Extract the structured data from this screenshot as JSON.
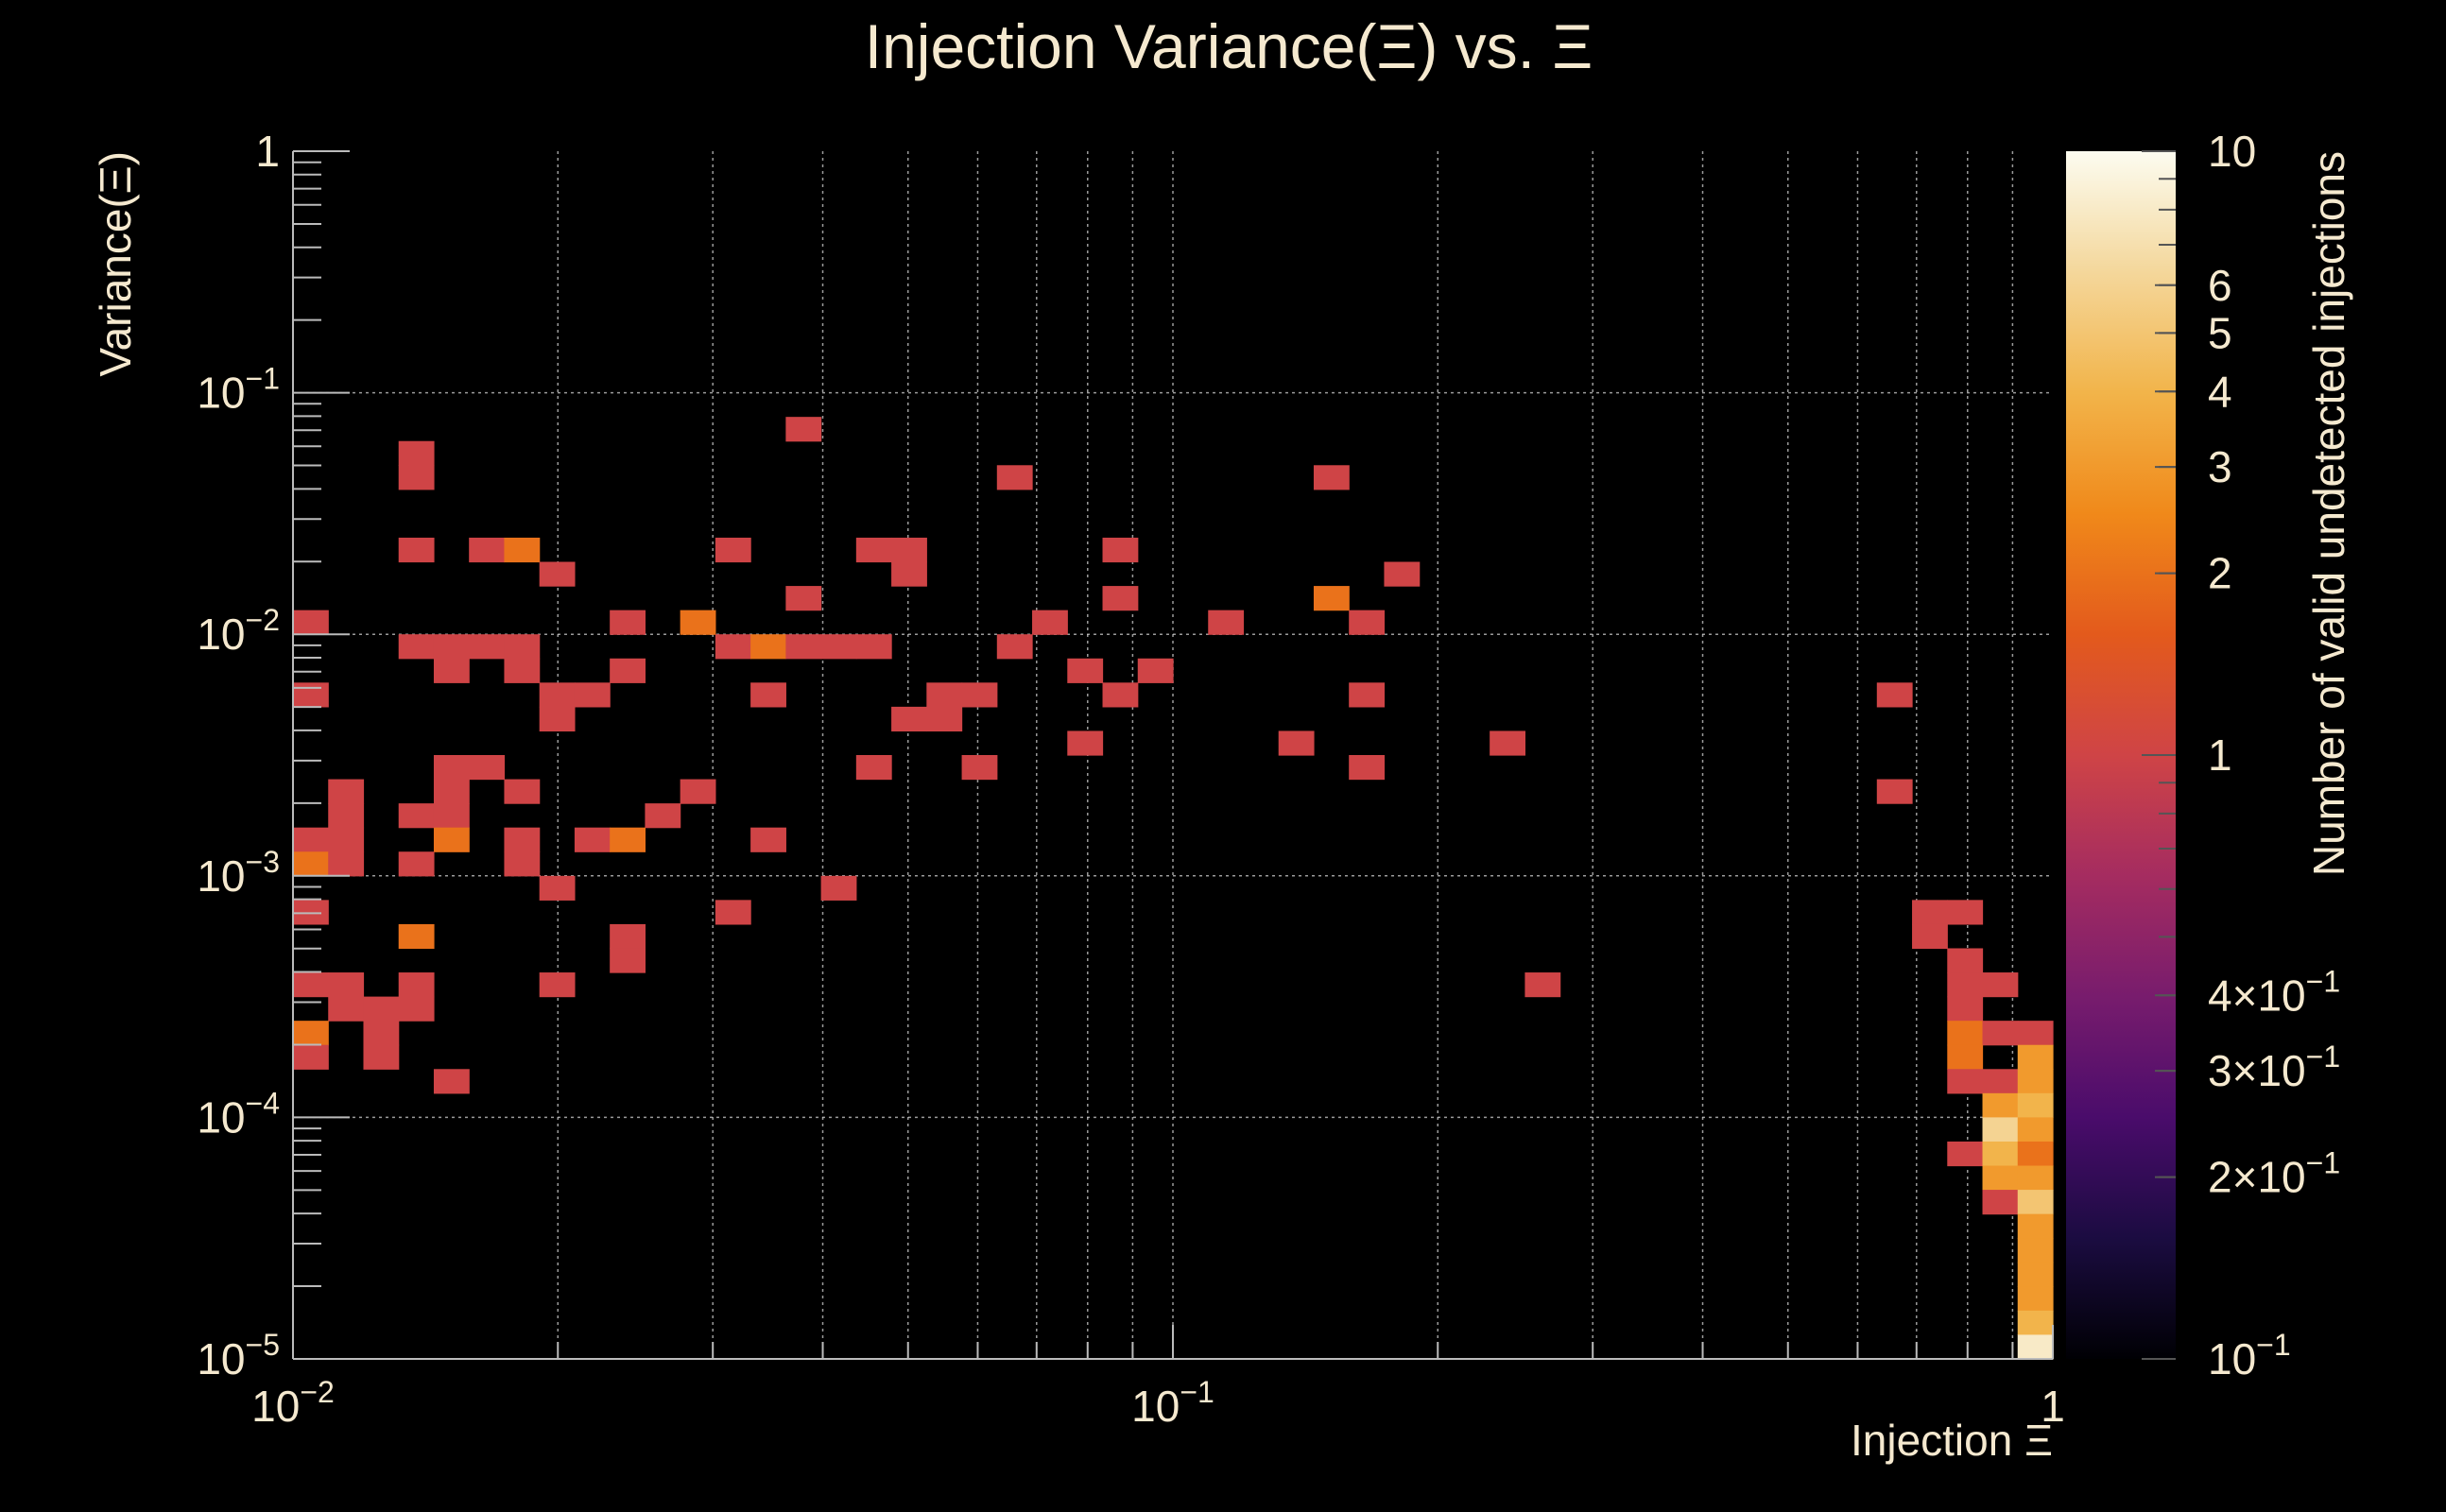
{
  "chart_data": {
    "type": "heatmap",
    "title": "Injection Variance(Ξ) vs. Ξ",
    "xlabel": "Injection Ξ",
    "ylabel": "Variance(Ξ)",
    "colorbar_label": "Number of valid undetected injections",
    "x_scale": "log",
    "y_scale": "log",
    "z_scale": "log",
    "xlim": [
      0.01,
      1
    ],
    "ylim": [
      1e-05,
      1
    ],
    "zlim": [
      0.1,
      10
    ],
    "grid": true,
    "x_ticks": [
      {
        "value": 0.01,
        "base": "10",
        "exp": "−2"
      },
      {
        "value": 0.1,
        "base": "10",
        "exp": "−1"
      },
      {
        "value": 1,
        "base": "1",
        "exp": ""
      }
    ],
    "y_ticks": [
      {
        "value": 1,
        "base": "1",
        "exp": ""
      },
      {
        "value": 0.1,
        "base": "10",
        "exp": "−1"
      },
      {
        "value": 0.01,
        "base": "10",
        "exp": "−2"
      },
      {
        "value": 0.001,
        "base": "10",
        "exp": "−3"
      },
      {
        "value": 0.0001,
        "base": "10",
        "exp": "−4"
      },
      {
        "value": 1e-05,
        "base": "10",
        "exp": "−5"
      }
    ],
    "colorbar_ticks": [
      {
        "value": 10,
        "base": "10",
        "exp": ""
      },
      {
        "value": 6,
        "base": "6",
        "exp": ""
      },
      {
        "value": 5,
        "base": "5",
        "exp": ""
      },
      {
        "value": 4,
        "base": "4",
        "exp": ""
      },
      {
        "value": 3,
        "base": "3",
        "exp": ""
      },
      {
        "value": 2,
        "base": "2",
        "exp": ""
      },
      {
        "value": 1,
        "base": "1",
        "exp": ""
      },
      {
        "value": 0.4,
        "base": "4×10",
        "exp": "−1"
      },
      {
        "value": 0.3,
        "base": "3×10",
        "exp": "−1"
      },
      {
        "value": 0.2,
        "base": "2×10",
        "exp": "−1"
      },
      {
        "value": 0.1,
        "base": "10",
        "exp": "−1"
      }
    ],
    "bins": {
      "nx": 50,
      "ny": 50
    },
    "colors": {
      "background": "#000000",
      "text": "#f5e9cf",
      "grid": "#cfcfcf",
      "palette": [
        "#000004",
        "#1b0c41",
        "#4a0c6b",
        "#781c6d",
        "#a52c60",
        "#cf4446",
        "#e35a1c",
        "#f0891a",
        "#f2b44a",
        "#f4d79b",
        "#fcfcf0"
      ]
    },
    "cells": [
      {
        "ix": 3,
        "iy": 36,
        "z": 1
      },
      {
        "ix": 3,
        "iy": 37,
        "z": 1
      },
      {
        "ix": 14,
        "iy": 38,
        "z": 1
      },
      {
        "ix": 20,
        "iy": 36,
        "z": 1
      },
      {
        "ix": 29,
        "iy": 36,
        "z": 1
      },
      {
        "ix": 16,
        "iy": 33,
        "z": 1
      },
      {
        "ix": 23,
        "iy": 33,
        "z": 1
      },
      {
        "ix": 3,
        "iy": 33,
        "z": 1
      },
      {
        "ix": 5,
        "iy": 33,
        "z": 1
      },
      {
        "ix": 6,
        "iy": 33,
        "z": 2
      },
      {
        "ix": 12,
        "iy": 33,
        "z": 1
      },
      {
        "ix": 17,
        "iy": 33,
        "z": 1
      },
      {
        "ix": 7,
        "iy": 32,
        "z": 1
      },
      {
        "ix": 17,
        "iy": 32,
        "z": 1
      },
      {
        "ix": 31,
        "iy": 32,
        "z": 1
      },
      {
        "ix": 14,
        "iy": 31,
        "z": 1
      },
      {
        "ix": 23,
        "iy": 31,
        "z": 1
      },
      {
        "ix": 29,
        "iy": 31,
        "z": 2
      },
      {
        "ix": 0,
        "iy": 30,
        "z": 1
      },
      {
        "ix": 9,
        "iy": 30,
        "z": 1
      },
      {
        "ix": 11,
        "iy": 30,
        "z": 2
      },
      {
        "ix": 21,
        "iy": 30,
        "z": 1
      },
      {
        "ix": 26,
        "iy": 30,
        "z": 1
      },
      {
        "ix": 30,
        "iy": 30,
        "z": 1
      },
      {
        "ix": 3,
        "iy": 29,
        "z": 1
      },
      {
        "ix": 4,
        "iy": 29,
        "z": 1
      },
      {
        "ix": 5,
        "iy": 29,
        "z": 1
      },
      {
        "ix": 6,
        "iy": 29,
        "z": 1
      },
      {
        "ix": 12,
        "iy": 29,
        "z": 1
      },
      {
        "ix": 13,
        "iy": 29,
        "z": 2
      },
      {
        "ix": 14,
        "iy": 29,
        "z": 1
      },
      {
        "ix": 15,
        "iy": 29,
        "z": 1
      },
      {
        "ix": 16,
        "iy": 29,
        "z": 1
      },
      {
        "ix": 20,
        "iy": 29,
        "z": 1
      },
      {
        "ix": 4,
        "iy": 28,
        "z": 1
      },
      {
        "ix": 6,
        "iy": 28,
        "z": 1
      },
      {
        "ix": 9,
        "iy": 28,
        "z": 1
      },
      {
        "ix": 22,
        "iy": 28,
        "z": 1
      },
      {
        "ix": 24,
        "iy": 28,
        "z": 1
      },
      {
        "ix": 0,
        "iy": 27,
        "z": 1
      },
      {
        "ix": 7,
        "iy": 27,
        "z": 1
      },
      {
        "ix": 8,
        "iy": 27,
        "z": 1
      },
      {
        "ix": 13,
        "iy": 27,
        "z": 1
      },
      {
        "ix": 18,
        "iy": 27,
        "z": 1
      },
      {
        "ix": 19,
        "iy": 27,
        "z": 1
      },
      {
        "ix": 23,
        "iy": 27,
        "z": 1
      },
      {
        "ix": 30,
        "iy": 27,
        "z": 1
      },
      {
        "ix": 45,
        "iy": 27,
        "z": 1
      },
      {
        "ix": 7,
        "iy": 26,
        "z": 1
      },
      {
        "ix": 17,
        "iy": 26,
        "z": 1
      },
      {
        "ix": 18,
        "iy": 26,
        "z": 1
      },
      {
        "ix": 22,
        "iy": 25,
        "z": 1
      },
      {
        "ix": 28,
        "iy": 25,
        "z": 1
      },
      {
        "ix": 34,
        "iy": 25,
        "z": 1
      },
      {
        "ix": 4,
        "iy": 24,
        "z": 1
      },
      {
        "ix": 5,
        "iy": 24,
        "z": 1
      },
      {
        "ix": 16,
        "iy": 24,
        "z": 1
      },
      {
        "ix": 19,
        "iy": 24,
        "z": 1
      },
      {
        "ix": 30,
        "iy": 24,
        "z": 1
      },
      {
        "ix": 1,
        "iy": 23,
        "z": 1
      },
      {
        "ix": 4,
        "iy": 23,
        "z": 1
      },
      {
        "ix": 6,
        "iy": 23,
        "z": 1
      },
      {
        "ix": 11,
        "iy": 23,
        "z": 1
      },
      {
        "ix": 45,
        "iy": 23,
        "z": 1
      },
      {
        "ix": 1,
        "iy": 22,
        "z": 1
      },
      {
        "ix": 3,
        "iy": 22,
        "z": 1
      },
      {
        "ix": 4,
        "iy": 22,
        "z": 1
      },
      {
        "ix": 10,
        "iy": 22,
        "z": 1
      },
      {
        "ix": 0,
        "iy": 21,
        "z": 1
      },
      {
        "ix": 1,
        "iy": 21,
        "z": 1
      },
      {
        "ix": 4,
        "iy": 21,
        "z": 2
      },
      {
        "ix": 6,
        "iy": 21,
        "z": 1
      },
      {
        "ix": 8,
        "iy": 21,
        "z": 1
      },
      {
        "ix": 9,
        "iy": 21,
        "z": 2
      },
      {
        "ix": 13,
        "iy": 21,
        "z": 1
      },
      {
        "ix": 0,
        "iy": 20,
        "z": 2
      },
      {
        "ix": 1,
        "iy": 20,
        "z": 1
      },
      {
        "ix": 3,
        "iy": 20,
        "z": 1
      },
      {
        "ix": 6,
        "iy": 20,
        "z": 1
      },
      {
        "ix": 7,
        "iy": 19,
        "z": 1
      },
      {
        "ix": 15,
        "iy": 19,
        "z": 1
      },
      {
        "ix": 0,
        "iy": 18,
        "z": 1
      },
      {
        "ix": 12,
        "iy": 18,
        "z": 1
      },
      {
        "ix": 46,
        "iy": 18,
        "z": 1
      },
      {
        "ix": 47,
        "iy": 18,
        "z": 1
      },
      {
        "ix": 3,
        "iy": 17,
        "z": 2
      },
      {
        "ix": 9,
        "iy": 17,
        "z": 1
      },
      {
        "ix": 46,
        "iy": 17,
        "z": 1
      },
      {
        "ix": 9,
        "iy": 16,
        "z": 1
      },
      {
        "ix": 47,
        "iy": 16,
        "z": 1
      },
      {
        "ix": 0,
        "iy": 15,
        "z": 1
      },
      {
        "ix": 1,
        "iy": 15,
        "z": 1
      },
      {
        "ix": 3,
        "iy": 15,
        "z": 1
      },
      {
        "ix": 7,
        "iy": 15,
        "z": 1
      },
      {
        "ix": 35,
        "iy": 15,
        "z": 1
      },
      {
        "ix": 47,
        "iy": 15,
        "z": 1
      },
      {
        "ix": 48,
        "iy": 15,
        "z": 1
      },
      {
        "ix": 1,
        "iy": 14,
        "z": 1
      },
      {
        "ix": 2,
        "iy": 14,
        "z": 1
      },
      {
        "ix": 3,
        "iy": 14,
        "z": 1
      },
      {
        "ix": 47,
        "iy": 14,
        "z": 1
      },
      {
        "ix": 0,
        "iy": 13,
        "z": 2
      },
      {
        "ix": 2,
        "iy": 13,
        "z": 1
      },
      {
        "ix": 47,
        "iy": 13,
        "z": 2
      },
      {
        "ix": 48,
        "iy": 13,
        "z": 1
      },
      {
        "ix": 49,
        "iy": 13,
        "z": 1
      },
      {
        "ix": 0,
        "iy": 12,
        "z": 1
      },
      {
        "ix": 2,
        "iy": 12,
        "z": 1
      },
      {
        "ix": 47,
        "iy": 12,
        "z": 2
      },
      {
        "ix": 49,
        "iy": 12,
        "z": 3
      },
      {
        "ix": 4,
        "iy": 11,
        "z": 1
      },
      {
        "ix": 47,
        "iy": 11,
        "z": 1
      },
      {
        "ix": 48,
        "iy": 11,
        "z": 1
      },
      {
        "ix": 49,
        "iy": 11,
        "z": 3
      },
      {
        "ix": 48,
        "iy": 10,
        "z": 3
      },
      {
        "ix": 49,
        "iy": 10,
        "z": 4
      },
      {
        "ix": 48,
        "iy": 9,
        "z": 6
      },
      {
        "ix": 49,
        "iy": 9,
        "z": 3
      },
      {
        "ix": 47,
        "iy": 8,
        "z": 1
      },
      {
        "ix": 48,
        "iy": 8,
        "z": 4
      },
      {
        "ix": 49,
        "iy": 8,
        "z": 2
      },
      {
        "ix": 48,
        "iy": 7,
        "z": 3
      },
      {
        "ix": 49,
        "iy": 7,
        "z": 3
      },
      {
        "ix": 48,
        "iy": 6,
        "z": 1
      },
      {
        "ix": 49,
        "iy": 6,
        "z": 5
      },
      {
        "ix": 49,
        "iy": 5,
        "z": 3
      },
      {
        "ix": 49,
        "iy": 4,
        "z": 3
      },
      {
        "ix": 49,
        "iy": 3,
        "z": 3
      },
      {
        "ix": 49,
        "iy": 2,
        "z": 3
      },
      {
        "ix": 49,
        "iy": 1,
        "z": 4
      },
      {
        "ix": 49,
        "iy": 0,
        "z": 8
      }
    ]
  }
}
